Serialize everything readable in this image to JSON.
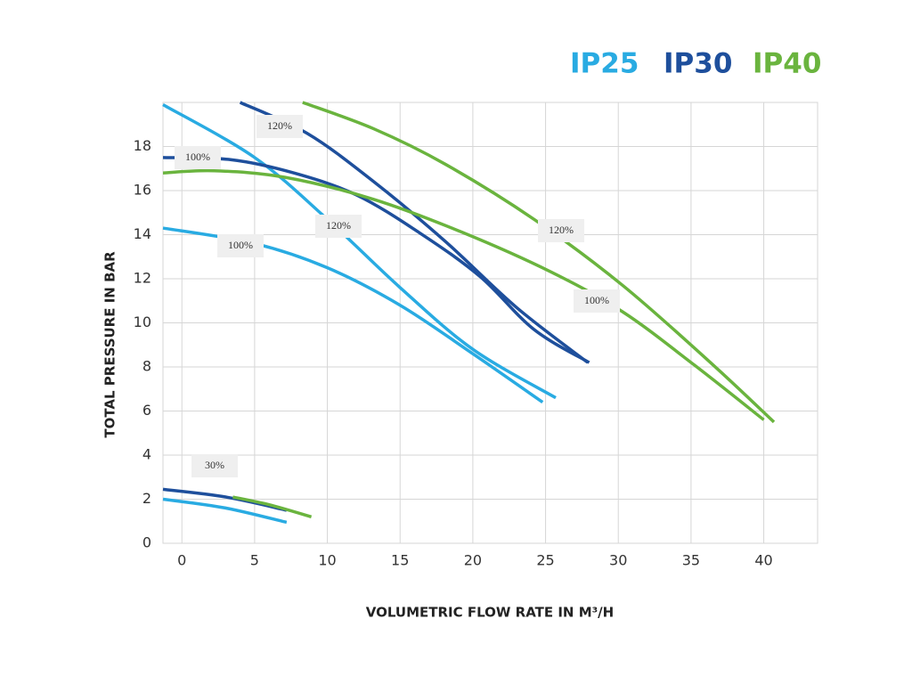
{
  "chart_data": {
    "type": "line",
    "xlabel": "VOLUMETRIC FLOW RATE IN M³/H",
    "ylabel": "TOTAL PRESSURE IN BAR",
    "xlim": [
      -1.3,
      43.7
    ],
    "ylim": [
      0,
      20
    ],
    "xticks": [
      0,
      5,
      10,
      15,
      20,
      25,
      30,
      35,
      40
    ],
    "yticks": [
      0,
      2,
      4,
      6,
      8,
      10,
      12,
      14,
      16,
      18
    ],
    "grid": true,
    "series": [
      {
        "name": "IP25",
        "color": "#29abe2",
        "curves": [
          {
            "label": "120%",
            "x": [
              -1.3,
              5,
              10,
              15,
              20,
              25.7
            ],
            "values": [
              19.9,
              17.5,
              14.7,
              11.6,
              8.8,
              6.6
            ]
          },
          {
            "label": "100%",
            "x": [
              -1.3,
              5,
              10,
              15,
              20,
              24.8
            ],
            "values": [
              14.3,
              13.6,
              12.5,
              10.8,
              8.6,
              6.4
            ]
          },
          {
            "label": "30%",
            "x": [
              -1.3,
              3,
              7.2
            ],
            "values": [
              2.0,
              1.6,
              0.95
            ]
          }
        ]
      },
      {
        "name": "IP30",
        "color": "#1e4f9c",
        "curves": [
          {
            "label": "120%",
            "x": [
              4,
              8.6,
              13.2,
              18.1,
              23,
              27.9
            ],
            "values": [
              20,
              18.6,
              16.4,
              13.7,
              10.7,
              8.2
            ]
          },
          {
            "label": "100%",
            "x": [
              -1.3,
              3.4,
              7.7,
              12,
              16.3,
              20.5,
              24.2,
              28
            ],
            "values": [
              17.5,
              17.4,
              16.8,
              15.8,
              14.1,
              12.1,
              9.7,
              8.2
            ]
          },
          {
            "x": [
              -1.3,
              3,
              7.2
            ],
            "values": [
              2.45,
              2.1,
              1.5
            ]
          }
        ]
      },
      {
        "name": "IP40",
        "color": "#6ab43e",
        "curves": [
          {
            "label": "120%",
            "x": [
              8.3,
              13.2,
              18.1,
              24.2,
              30.3,
              36.5,
              40.7
            ],
            "values": [
              20,
              18.8,
              17.2,
              14.7,
              11.7,
              8.1,
              5.5
            ]
          },
          {
            "label": "100%",
            "x": [
              -1.3,
              2.2,
              7.1,
              13.2,
              19.3,
              25.4,
              30.3,
              35.2,
              40
            ],
            "values": [
              16.8,
              16.9,
              16.6,
              15.6,
              14.1,
              12.3,
              10.5,
              8.1,
              5.6
            ]
          },
          {
            "x": [
              3.5,
              6,
              8.9
            ],
            "values": [
              2.1,
              1.75,
              1.2
            ]
          }
        ]
      }
    ]
  }
}
